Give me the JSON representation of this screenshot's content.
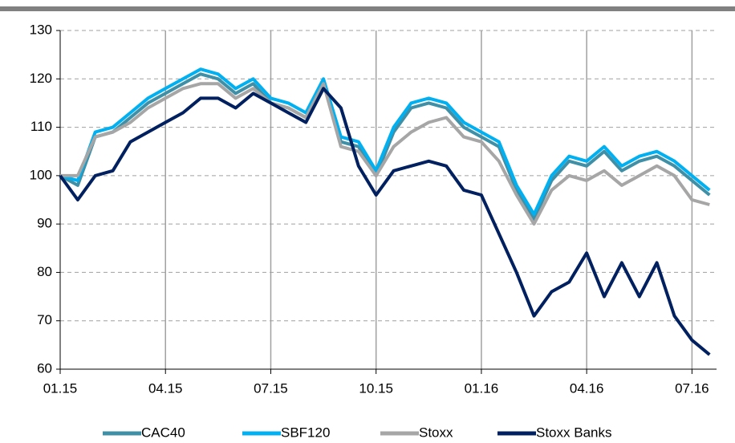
{
  "chart_data": {
    "type": "line",
    "x": [
      0,
      0.5,
      1,
      1.5,
      2,
      2.5,
      3,
      3.5,
      4,
      4.5,
      5,
      5.5,
      6,
      6.5,
      7,
      7.5,
      8,
      8.5,
      9,
      9.5,
      10,
      10.5,
      11,
      11.5,
      12,
      12.5,
      13,
      13.5,
      14,
      14.5,
      15,
      15.5,
      16,
      16.5,
      17,
      17.5,
      18,
      18.5
    ],
    "series": [
      {
        "name": "CAC40",
        "color": "#3f8fa6",
        "values": [
          100,
          98,
          108,
          109,
          112,
          115,
          117,
          119,
          121,
          120,
          117,
          119,
          115,
          114,
          112,
          119,
          107,
          106,
          100,
          109,
          114,
          115,
          114,
          110,
          108,
          106,
          97,
          91,
          99,
          103,
          102,
          105,
          101,
          103,
          104,
          102,
          99,
          96
        ]
      },
      {
        "name": "SBF120",
        "color": "#00b0f0",
        "values": [
          100,
          99,
          109,
          110,
          113,
          116,
          118,
          120,
          122,
          121,
          118,
          120,
          116,
          115,
          113,
          120,
          108,
          107,
          101,
          110,
          115,
          116,
          115,
          111,
          109,
          107,
          98,
          92,
          100,
          104,
          103,
          106,
          102,
          104,
          105,
          103,
          100,
          97
        ]
      },
      {
        "name": "Stoxx",
        "color": "#a6a6a6",
        "values": [
          100,
          100,
          108,
          109,
          111,
          114,
          116,
          118,
          119,
          119,
          116,
          118,
          115,
          114,
          112,
          119,
          106,
          105,
          100,
          106,
          109,
          111,
          112,
          108,
          107,
          103,
          96,
          90,
          97,
          100,
          99,
          101,
          98,
          100,
          102,
          100,
          95,
          94
        ]
      },
      {
        "name": "Stoxx Banks",
        "color": "#002060",
        "values": [
          100,
          95,
          100,
          101,
          107,
          109,
          111,
          113,
          116,
          116,
          114,
          117,
          115,
          113,
          111,
          118,
          114,
          102,
          96,
          101,
          102,
          103,
          102,
          97,
          96,
          88,
          80,
          71,
          76,
          78,
          84,
          75,
          82,
          75,
          82,
          71,
          66,
          63
        ]
      }
    ],
    "xlim": [
      0,
      18.7
    ],
    "xticks": [
      {
        "value": 0,
        "label": "01.15"
      },
      {
        "value": 3,
        "label": "04.15"
      },
      {
        "value": 6,
        "label": "07.15"
      },
      {
        "value": 9,
        "label": "10.15"
      },
      {
        "value": 12,
        "label": "01.16"
      },
      {
        "value": 15,
        "label": "04.16"
      },
      {
        "value": 18,
        "label": "07.16"
      }
    ],
    "ylim": [
      60,
      130
    ],
    "yticks": [
      60,
      70,
      80,
      90,
      100,
      110,
      120,
      130
    ],
    "grid": true,
    "legend": "bottom"
  }
}
